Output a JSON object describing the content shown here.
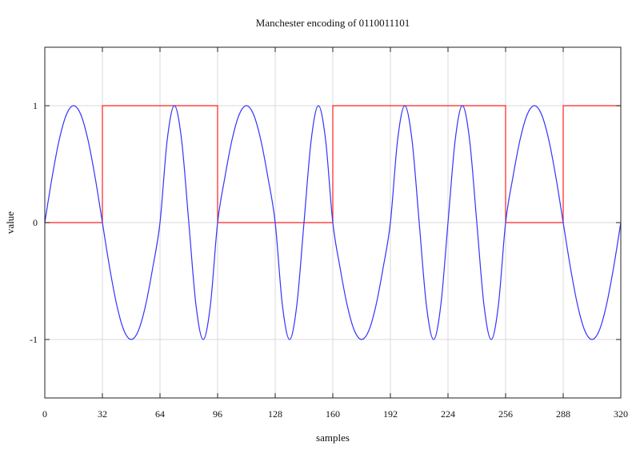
{
  "chart_data": {
    "type": "line",
    "title": "Manchester encoding of 0110011101",
    "xlabel": "samples",
    "ylabel": "value",
    "xlim": [
      0,
      320
    ],
    "ylim": [
      -1.5,
      1.5
    ],
    "xticks": [
      "0",
      "32",
      "64",
      "96",
      "128",
      "160",
      "192",
      "224",
      "256",
      "288",
      "320"
    ],
    "yticks": [
      "1",
      "0",
      "-1"
    ],
    "ytick_values": [
      1,
      0,
      -1
    ],
    "grid": true,
    "legend": "none",
    "series": [
      {
        "color": "#ff2020",
        "style": "step",
        "x": [
          0,
          32,
          96,
          160,
          256,
          288,
          320
        ],
        "y": [
          0,
          1,
          0,
          1,
          0,
          1,
          1
        ]
      },
      {
        "color": "#3333ff",
        "style": "line",
        "x_step": 4,
        "y": [
          0,
          0.383,
          0.707,
          0.924,
          1,
          0.924,
          0.707,
          0.383,
          0,
          -0.383,
          -0.707,
          -0.924,
          -1,
          -0.924,
          -0.707,
          -0.383,
          0,
          0.707,
          1,
          0.707,
          0,
          -0.707,
          -1,
          -0.707,
          0,
          0.383,
          0.707,
          0.924,
          1,
          0.924,
          0.707,
          0.383,
          0,
          -0.707,
          -1,
          -0.707,
          0,
          0.707,
          1,
          0.707,
          0,
          -0.383,
          -0.707,
          -0.924,
          -1,
          -0.924,
          -0.707,
          -0.383,
          0,
          0.707,
          1,
          0.707,
          0,
          -0.707,
          -1,
          -0.707,
          0,
          0.707,
          1,
          0.707,
          0,
          -0.707,
          -1,
          -0.707,
          0,
          0.383,
          0.707,
          0.924,
          1,
          0.924,
          0.707,
          0.383,
          0,
          -0.383,
          -0.707,
          -0.924,
          -1,
          -0.924,
          -0.707,
          -0.383,
          0
        ]
      }
    ]
  }
}
